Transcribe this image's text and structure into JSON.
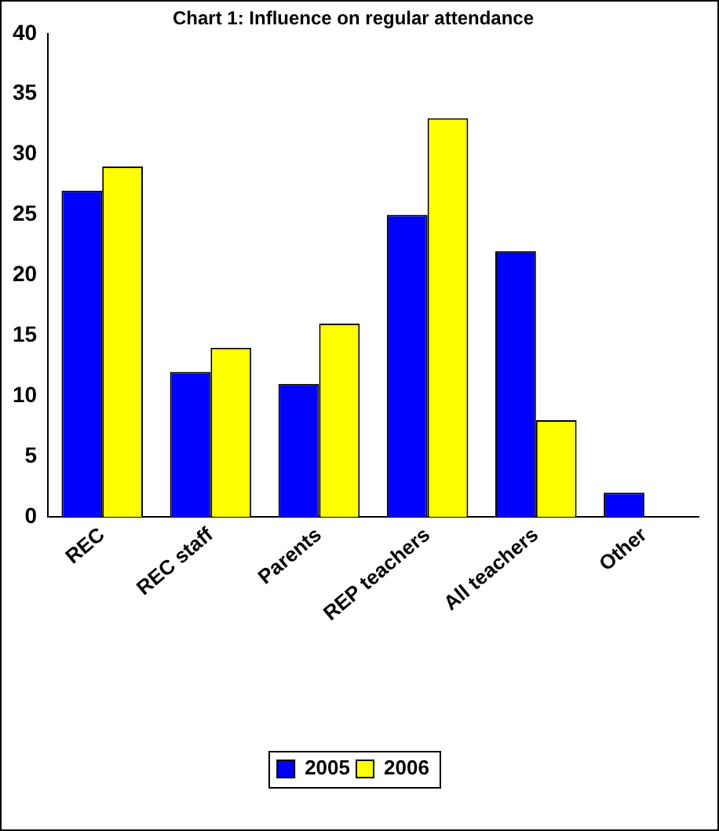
{
  "chart_data": {
    "type": "bar",
    "title": "Chart 1: Influence on regular attendance",
    "categories": [
      "REC",
      "REC staff",
      "Parents",
      "REP teachers",
      "All teachers",
      "Other"
    ],
    "series": [
      {
        "name": "2005",
        "color": "#0000ff",
        "values": [
          27,
          12,
          11,
          25,
          22,
          2
        ]
      },
      {
        "name": "2006",
        "color": "#ffff00",
        "values": [
          29,
          14,
          16,
          33,
          8,
          null
        ]
      }
    ],
    "ylim": [
      0,
      40
    ],
    "yticks": [
      0,
      5,
      10,
      15,
      20,
      25,
      30,
      35,
      40
    ],
    "grid": false,
    "legend": "bottom"
  }
}
